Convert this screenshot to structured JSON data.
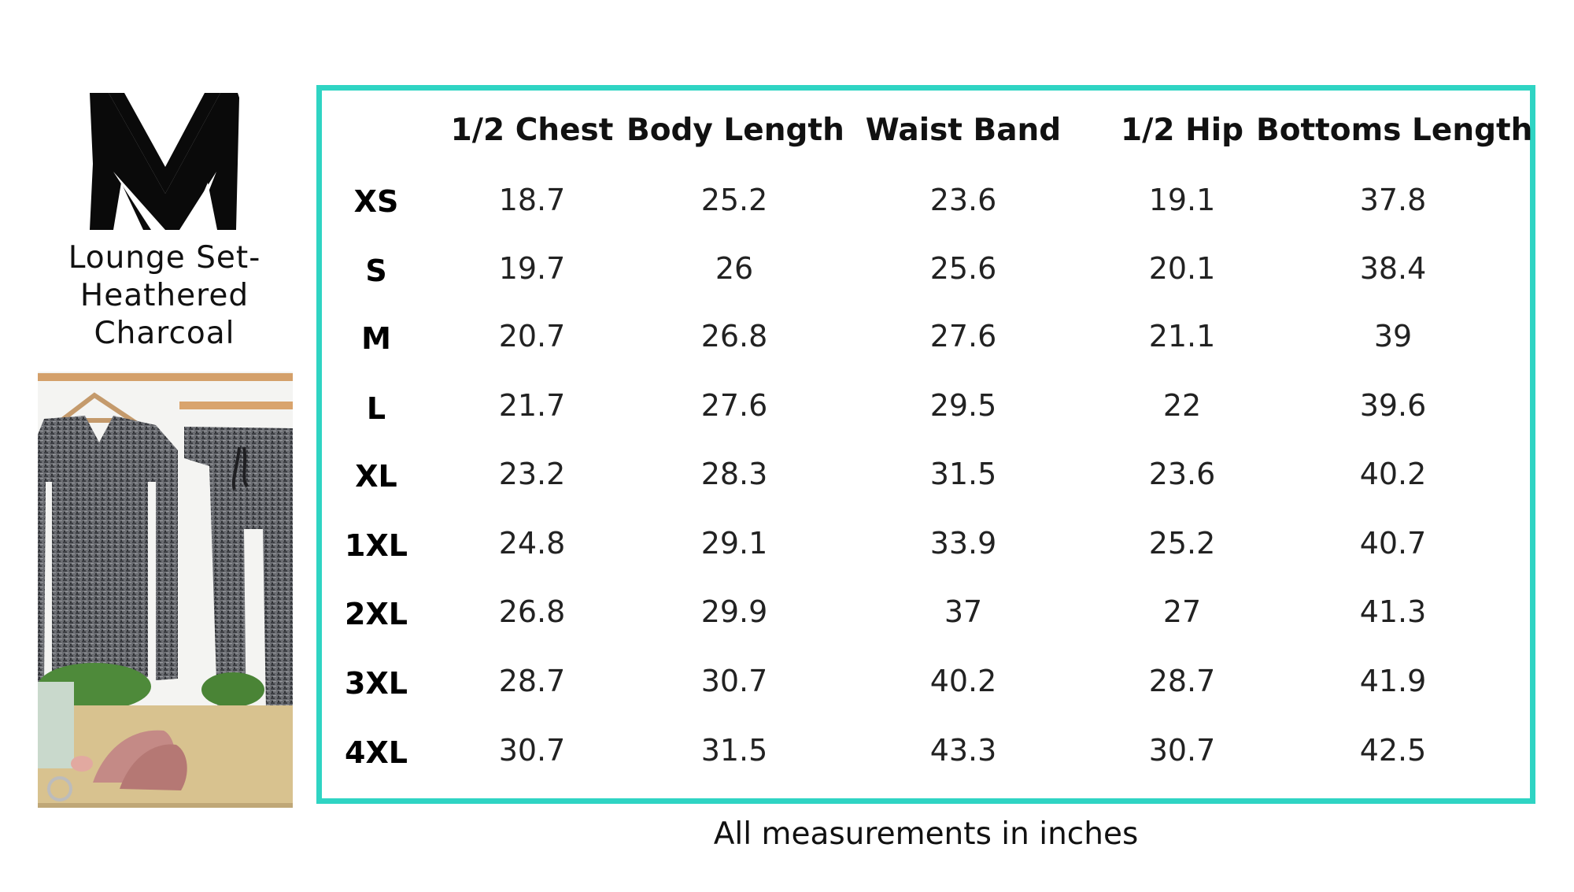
{
  "brand": {
    "logo_icon": "mv-monogram-logo"
  },
  "product": {
    "title_lines": [
      "Lounge Set-",
      "Heathered",
      "Charcoal"
    ],
    "photo_icon": "product-photo-heathered-charcoal-lounge-set"
  },
  "size_chart": {
    "columns": [
      "1/2 Chest",
      "Body Length",
      "Waist Band",
      "1/2 Hip",
      "Bottoms Length"
    ],
    "rows": [
      {
        "size": "XS",
        "values": [
          "18.7",
          "25.2",
          "23.6",
          "19.1",
          "37.8"
        ]
      },
      {
        "size": "S",
        "values": [
          "19.7",
          "26",
          "25.6",
          "20.1",
          "38.4"
        ]
      },
      {
        "size": "M",
        "values": [
          "20.7",
          "26.8",
          "27.6",
          "21.1",
          "39"
        ]
      },
      {
        "size": "L",
        "values": [
          "21.7",
          "27.6",
          "29.5",
          "22",
          "39.6"
        ]
      },
      {
        "size": "XL",
        "values": [
          "23.2",
          "28.3",
          "31.5",
          "23.6",
          "40.2"
        ]
      },
      {
        "size": "1XL",
        "values": [
          "24.8",
          "29.1",
          "33.9",
          "25.2",
          "40.7"
        ]
      },
      {
        "size": "2XL",
        "values": [
          "26.8",
          "29.9",
          "37",
          "27",
          "41.3"
        ]
      },
      {
        "size": "3XL",
        "values": [
          "28.7",
          "30.7",
          "40.2",
          "28.7",
          "41.9"
        ]
      },
      {
        "size": "4XL",
        "values": [
          "30.7",
          "31.5",
          "43.3",
          "30.7",
          "42.5"
        ]
      }
    ],
    "footnote": "All measurements in inches"
  },
  "colors": {
    "frame": "#2fd4c3",
    "text": "#111111"
  }
}
